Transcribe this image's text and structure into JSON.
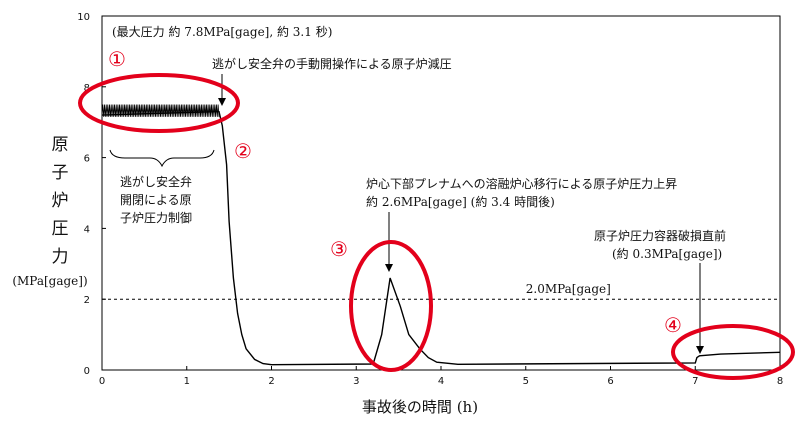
{
  "chart_data": {
    "type": "line",
    "xlabel": "事故後の時間 (h)",
    "ylabel_chars": [
      "原",
      "子",
      "炉",
      "圧",
      "力"
    ],
    "ylabel_unit": "(MPa[gage])",
    "xlim": [
      0,
      8
    ],
    "ylim": [
      0,
      10
    ],
    "x_ticks": [
      0,
      1,
      2,
      3,
      4,
      5,
      6,
      7,
      8
    ],
    "y_ticks": [
      0,
      2,
      4,
      6,
      8,
      10
    ],
    "reference_line": {
      "y": 2.0,
      "label": "2.0MPa[gage]"
    },
    "series": [
      {
        "values": [
          [
            0.0,
            7.2
          ],
          [
            1.38,
            7.3
          ],
          [
            1.42,
            6.9
          ],
          [
            1.47,
            5.8
          ],
          [
            1.5,
            4.2
          ],
          [
            1.55,
            2.6
          ],
          [
            1.6,
            1.6
          ],
          [
            1.65,
            1.0
          ],
          [
            1.7,
            0.6
          ],
          [
            1.8,
            0.3
          ],
          [
            1.9,
            0.18
          ],
          [
            2.0,
            0.15
          ],
          [
            3.2,
            0.17
          ],
          [
            3.3,
            1.0
          ],
          [
            3.4,
            2.6
          ],
          [
            3.52,
            1.8
          ],
          [
            3.62,
            1.0
          ],
          [
            3.75,
            0.6
          ],
          [
            3.85,
            0.35
          ],
          [
            3.95,
            0.22
          ],
          [
            4.2,
            0.16
          ],
          [
            7.0,
            0.2
          ],
          [
            7.02,
            0.35
          ],
          [
            7.05,
            0.4
          ],
          [
            7.3,
            0.45
          ],
          [
            8.0,
            0.5
          ]
        ],
        "oscillation": {
          "x_start": 0.0,
          "x_end": 1.38,
          "y_min": 7.15,
          "y_max": 7.5
        }
      }
    ],
    "annotations": {
      "max_pressure": "(最大圧力 約 7.8MPa[gage], 約 3.1 秒)",
      "manual_valve": "逃がし安全弁の手動開操作による原子炉減圧",
      "srv_control": [
        "逃がし安全弁",
        "開閉による原",
        "子炉圧力制御"
      ],
      "relocation": [
        "炉心下部プレナムへの溶融炉心移行による原子炉圧力上昇",
        "約 2.6MPa[gage] (約 3.4 時間後)"
      ],
      "rpv_failure": [
        "原子炉圧力容器破損直前",
        "(約 0.3MPa[gage])"
      ]
    },
    "markers": [
      {
        "label": "①",
        "x": 0.7,
        "y": 7.3
      },
      {
        "label": "②",
        "x": 1.7,
        "y": 6.2
      },
      {
        "label": "③",
        "x": 3.4,
        "y": 1.6
      },
      {
        "label": "④",
        "x": 7.3,
        "y": 0.5
      }
    ],
    "highlight_color": "#e3001b"
  }
}
